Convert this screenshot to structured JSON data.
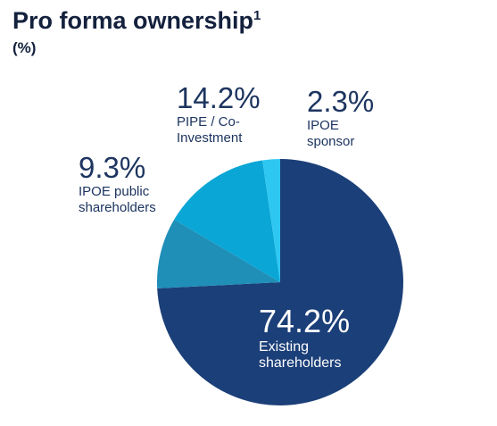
{
  "header": {
    "title": "Pro forma ownership",
    "title_superscript": "1",
    "subtitle": "(%)"
  },
  "chart_data": {
    "type": "pie",
    "title": "Pro forma ownership",
    "subtitle": "(%)",
    "slices": [
      {
        "label": "Existing shareholders",
        "value": 74.2,
        "value_label": "74.2%",
        "color": "#1b3f78"
      },
      {
        "label": "IPOE public shareholders",
        "value": 9.3,
        "value_label": "9.3%",
        "color": "#1f8fb8"
      },
      {
        "label": "PIPE / Co-Investment",
        "value": 14.2,
        "value_label": "14.2%",
        "color": "#0aa6d6"
      },
      {
        "label": "IPOE sponsor",
        "value": 2.3,
        "value_label": "2.3%",
        "color": "#2ec7f2"
      }
    ]
  }
}
